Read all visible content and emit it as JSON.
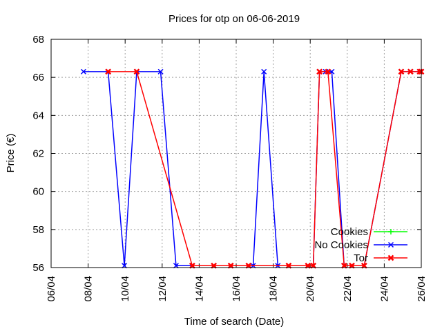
{
  "chart_data": {
    "type": "line",
    "title": "Prices for otp on 06-06-2019",
    "xlabel": "Time of search (Date)",
    "ylabel": "Price (€)",
    "xlim": [
      "2019-04-06",
      "2019-04-26"
    ],
    "ylim": [
      56,
      68
    ],
    "x_ticks": [
      "06/04",
      "08/04",
      "10/04",
      "12/04",
      "14/04",
      "16/04",
      "18/04",
      "20/04",
      "22/04",
      "24/04",
      "26/04"
    ],
    "y_ticks": [
      "56",
      "58",
      "60",
      "62",
      "64",
      "66",
      "68"
    ],
    "grid": true,
    "legend_position": "bottom-right",
    "series": [
      {
        "name": "Cookies",
        "color": "#00ff00",
        "marker": "plus",
        "points": []
      },
      {
        "name": "No Cookies",
        "color": "#0000ff",
        "marker": "x",
        "points": [
          [
            "2019-04-07 18:00",
            66.3
          ],
          [
            "2019-04-09 02:00",
            66.3
          ],
          [
            "2019-04-09 23:00",
            56.1
          ],
          [
            "2019-04-10 15:00",
            66.3
          ],
          [
            "2019-04-11 22:00",
            66.3
          ],
          [
            "2019-04-12 18:00",
            56.1
          ],
          [
            "2019-04-13 15:00",
            56.1
          ],
          [
            "2019-04-14 19:00",
            56.1
          ],
          [
            "2019-04-15 17:00",
            56.1
          ],
          [
            "2019-04-16 16:00",
            56.1
          ],
          [
            "2019-04-16 22:00",
            56.1
          ],
          [
            "2019-04-17 12:00",
            66.3
          ],
          [
            "2019-04-18 06:00",
            56.1
          ],
          [
            "2019-04-18 20:00",
            56.1
          ],
          [
            "2019-04-19 21:00",
            56.1
          ],
          [
            "2019-04-20 04:00",
            56.1
          ],
          [
            "2019-04-20 12:00",
            66.3
          ],
          [
            "2019-04-20 20:00",
            66.3
          ],
          [
            "2019-04-21 04:00",
            66.3
          ],
          [
            "2019-04-21 20:00",
            56.1
          ],
          [
            "2019-04-22 06:00",
            56.1
          ],
          [
            "2019-04-22 22:00",
            56.1
          ],
          [
            "2019-04-24 22:00",
            66.3
          ],
          [
            "2019-04-25 10:00",
            66.3
          ],
          [
            "2019-04-25 22:00",
            66.3
          ],
          [
            "2019-04-26 00:00",
            66.3
          ]
        ]
      },
      {
        "name": "Tor",
        "color": "#ff0000",
        "marker": "xbold",
        "points": [
          [
            "2019-04-09 02:00",
            66.3
          ],
          [
            "2019-04-10 15:00",
            66.3
          ],
          [
            "2019-04-13 15:00",
            56.1
          ],
          [
            "2019-04-14 19:00",
            56.1
          ],
          [
            "2019-04-15 17:00",
            56.1
          ],
          [
            "2019-04-16 16:00",
            56.1
          ],
          [
            "2019-04-18 20:00",
            56.1
          ],
          [
            "2019-04-19 21:00",
            56.1
          ],
          [
            "2019-04-20 04:00",
            56.1
          ],
          [
            "2019-04-20 12:00",
            66.3
          ],
          [
            "2019-04-20 23:00",
            66.3
          ],
          [
            "2019-04-21 20:00",
            56.1
          ],
          [
            "2019-04-22 06:00",
            56.1
          ],
          [
            "2019-04-22 22:00",
            56.1
          ],
          [
            "2019-04-24 22:00",
            66.3
          ],
          [
            "2019-04-25 10:00",
            66.3
          ],
          [
            "2019-04-25 22:00",
            66.3
          ],
          [
            "2019-04-26 00:00",
            66.3
          ]
        ]
      }
    ]
  }
}
